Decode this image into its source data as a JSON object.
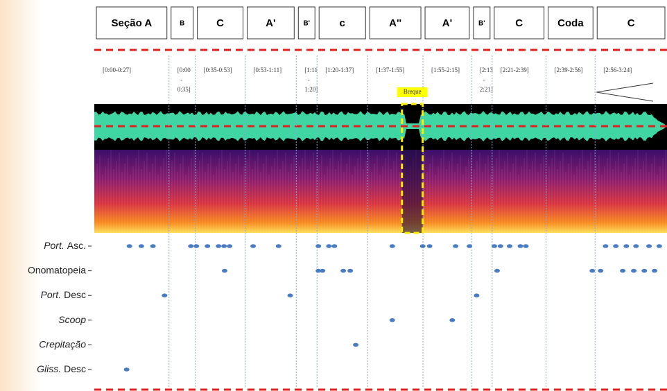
{
  "chart_data": {
    "type": "scatter",
    "xlim": [
      0,
      207
    ],
    "sections": [
      {
        "label": "Seção A",
        "range": [
          "[0:00-0:27]"
        ],
        "start": 0,
        "end": 27
      },
      {
        "label": "B",
        "range": [
          "[0:00",
          "-",
          "0:35]"
        ],
        "start": 27,
        "end": 36.5
      },
      {
        "label": "C",
        "range": [
          "[0:35-0:53]"
        ],
        "start": 36.5,
        "end": 54.5
      },
      {
        "label": "A'",
        "range": [
          "[0:53-1:11]"
        ],
        "start": 54.5,
        "end": 73
      },
      {
        "label": "B'",
        "range": [
          "[1:11",
          "-",
          "1:20]"
        ],
        "start": 73,
        "end": 80.5
      },
      {
        "label": "c",
        "range": [
          "[1:20-1:37]"
        ],
        "start": 80.5,
        "end": 98.8
      },
      {
        "label": "A''",
        "range": [
          "[1:37-1:55]"
        ],
        "start": 98.8,
        "end": 118.8
      },
      {
        "label": "A'",
        "range": [
          "[1:55-2:15]"
        ],
        "start": 118.8,
        "end": 136.3
      },
      {
        "label": "B'",
        "range": [
          "[2:13",
          "-",
          "2:21]"
        ],
        "start": 136.3,
        "end": 143.8
      },
      {
        "label": "C",
        "range": [
          "[2:21-2:39]"
        ],
        "start": 143.8,
        "end": 163.3
      },
      {
        "label": "Coda",
        "range": [
          "[2:39-2:56]"
        ],
        "start": 163.3,
        "end": 181
      },
      {
        "label": "C",
        "range": [
          "[2:56-3:24]"
        ],
        "start": 181,
        "end": 207
      }
    ],
    "breque": {
      "label": "Breque",
      "start": 111.2,
      "end": 118.7
    },
    "categories": [
      {
        "italic": "Port.",
        "text": "Asc."
      },
      {
        "text": "Onomatopeia"
      },
      {
        "italic": "Port.",
        "text": "Desc"
      },
      {
        "italic": "Scoop"
      },
      {
        "italic": "Crepitação"
      },
      {
        "italic": "Gliss.",
        "text": "Desc"
      }
    ],
    "color": "#4a7cc4",
    "events": [
      [
        12.7,
        17,
        21.2,
        34.9,
        36.9,
        40.9,
        44.9,
        46.9,
        48.9,
        57.4,
        66.6,
        81,
        84.8,
        86.8,
        107.7,
        118.7,
        121.2,
        130.6,
        135.6,
        144.6,
        146.8,
        150.1,
        154,
        156,
        184.8,
        188.5,
        192.3,
        195.8,
        200.5,
        204.2
      ],
      [
        47.1,
        81,
        82.5,
        90,
        92.5,
        145.6,
        180,
        183,
        191,
        195,
        198.8,
        202.5
      ],
      [
        25.4,
        70.8,
        138.2
      ],
      [
        107.7,
        129.4
      ],
      [
        94.5
      ],
      [
        11.7
      ]
    ]
  }
}
